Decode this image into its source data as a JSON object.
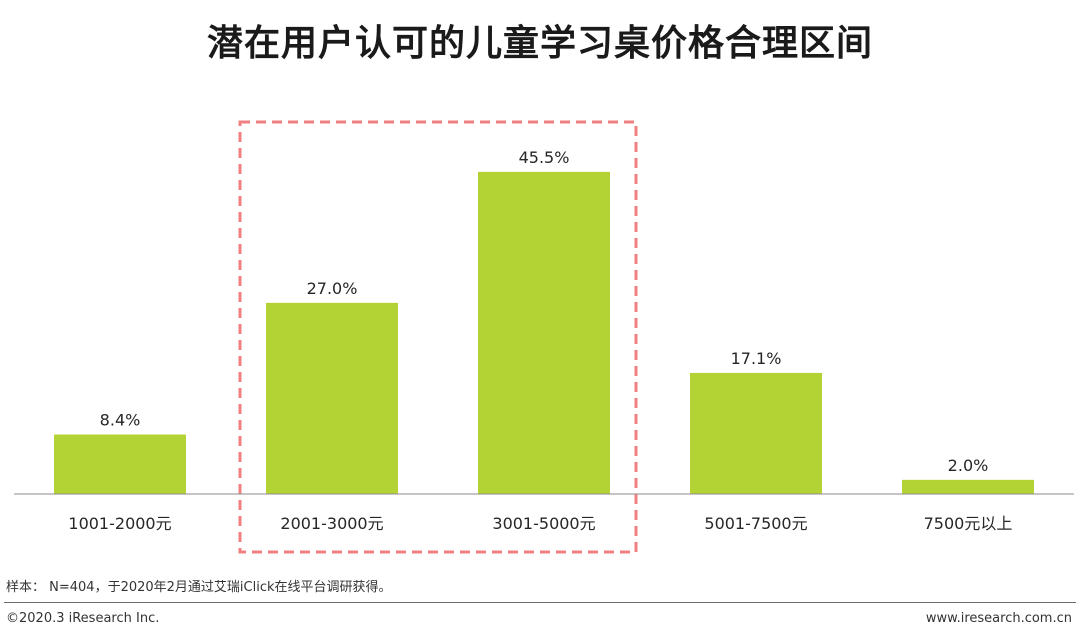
{
  "title": "潜在用户认可的儿童学习桌价格合理区间",
  "chart_data": {
    "type": "bar",
    "categories": [
      "1001-2000元",
      "2001-3000元",
      "3001-5000元",
      "5001-7500元",
      "7500元以上"
    ],
    "values": [
      8.4,
      27.0,
      45.5,
      17.1,
      2.0
    ],
    "value_labels": [
      "8.4%",
      "27.0%",
      "45.5%",
      "17.1%",
      "2.0%"
    ],
    "title": "潜在用户认可的儿童学习桌价格合理区间",
    "xlabel": "",
    "ylabel": "",
    "ylim": [
      0,
      50
    ],
    "grid": false,
    "bar_color": "#b3d335",
    "highlight_color": "#f08080",
    "highlight_categories": [
      "2001-3000元",
      "3001-5000元"
    ]
  },
  "note": "样本： N=404，于2020年2月通过艾瑞iClick在线平台调研获得。",
  "footer": {
    "copyright": "©2020.3 iResearch Inc.",
    "website": "www.iresearch.com.cn"
  }
}
